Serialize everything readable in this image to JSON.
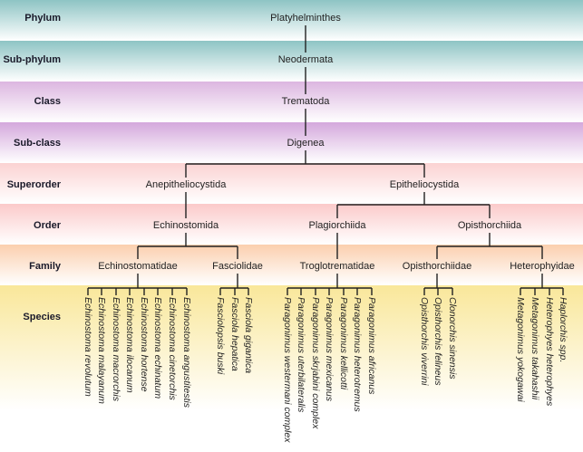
{
  "ranks": [
    {
      "label": "Phylum",
      "color": "#8ec4c4"
    },
    {
      "label": "Sub-phylum",
      "color": "#8ec4c4"
    },
    {
      "label": "Class",
      "color": "#dcb6e0"
    },
    {
      "label": "Sub-class",
      "color": "#d4a8dc"
    },
    {
      "label": "Superorder",
      "color": "#fbd2d2"
    },
    {
      "label": "Order",
      "color": "#fbcaca"
    },
    {
      "label": "Family",
      "color": "#fbcfae"
    },
    {
      "label": "Species",
      "color": "#f9e79a"
    }
  ],
  "nodes": {
    "phylum": "Platyhelminthes",
    "subphylum": "Neodermata",
    "class": "Trematoda",
    "subclass": "Digenea",
    "superorders": [
      "Anepitheliocystida",
      "Epitheliocystida"
    ],
    "orders": [
      "Echinostomida",
      "Plagiorchiida",
      "Opisthorchiida"
    ],
    "families": [
      "Echinostomatidae",
      "Fasciolidae",
      "Troglotrematidae",
      "Opisthorchiidae",
      "Heterophyidae"
    ]
  },
  "species": [
    [
      "Echinostoma revolutum",
      "Echinostoma malayanum",
      "Echinostoma macrorchis",
      "Echinostoma ilocanum",
      "Echinostoma hortense",
      "Echinostoma echinatum",
      "Echinostoma cinetorchis",
      "Echinostoma angustitestis"
    ],
    [
      "Fasciolopsis buski",
      "Fasciola hepatica",
      "Fasciola gigantica"
    ],
    [
      "Paragonimus westermani complex",
      "Paragonimus uterbilateralis",
      "Paragonimus skrjabini complex",
      "Paragonimus mexicanus",
      "Paragonimus kellicotti",
      "Paragonimus heterotremus",
      "Paragonimus africanus"
    ],
    [
      "Opisthorchis viverrini",
      "Opisthorchis felineus",
      "Clonorchis sinensis"
    ],
    [
      "Metagonimus yokogawai",
      "Metagonimus takahashii",
      "Heterophyes heterophyes",
      "Haplorchis spp."
    ]
  ]
}
